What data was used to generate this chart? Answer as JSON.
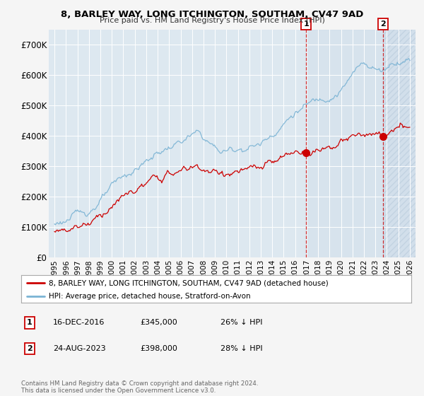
{
  "title": "8, BARLEY WAY, LONG ITCHINGTON, SOUTHAM, CV47 9AD",
  "subtitle": "Price paid vs. HM Land Registry's House Price Index (HPI)",
  "ylim": [
    0,
    750000
  ],
  "yticks": [
    0,
    100000,
    200000,
    300000,
    400000,
    500000,
    600000,
    700000
  ],
  "ytick_labels": [
    "£0",
    "£100K",
    "£200K",
    "£300K",
    "£400K",
    "£500K",
    "£600K",
    "£700K"
  ],
  "xlim_start": 1994.5,
  "xlim_end": 2026.5,
  "hpi_color": "#7ab3d4",
  "price_color": "#cc0000",
  "bg_color": "#dde8f0",
  "marker1_x": 2016.96,
  "marker1_y": 345000,
  "marker1_label": "1",
  "marker1_date": "16-DEC-2016",
  "marker1_price": "£345,000",
  "marker1_hpi": "26% ↓ HPI",
  "marker2_x": 2023.64,
  "marker2_y": 398000,
  "marker2_label": "2",
  "marker2_date": "24-AUG-2023",
  "marker2_price": "£398,000",
  "marker2_hpi": "28% ↓ HPI",
  "legend_line1": "8, BARLEY WAY, LONG ITCHINGTON, SOUTHAM, CV47 9AD (detached house)",
  "legend_line2": "HPI: Average price, detached house, Stratford-on-Avon",
  "footer": "Contains HM Land Registry data © Crown copyright and database right 2024.\nThis data is licensed under the Open Government Licence v3.0."
}
